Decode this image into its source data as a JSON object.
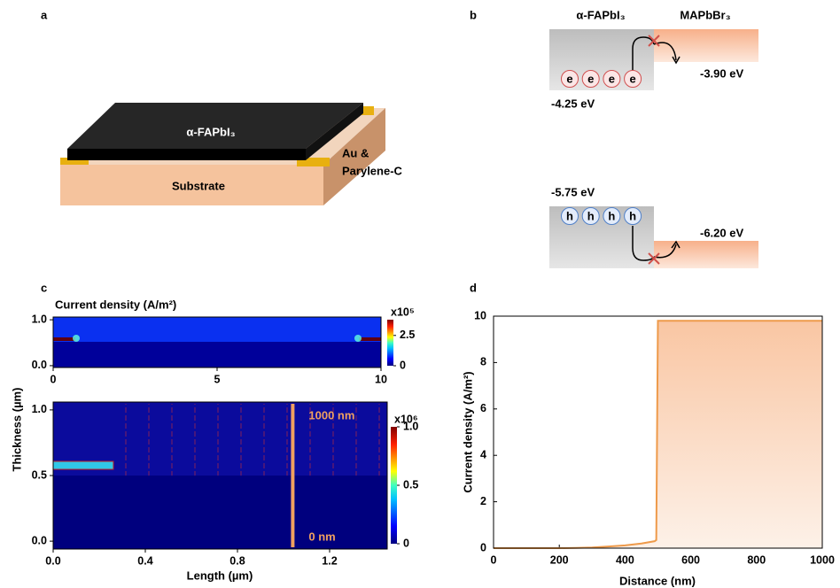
{
  "panel_a": {
    "label": "a",
    "film": "α-FAPbI₃",
    "electrode": [
      "Au &",
      "Parylene-C"
    ],
    "substrate": "Substrate"
  },
  "panel_b": {
    "label": "b",
    "left_material": "α-FAPbI₃",
    "right_material": "MAPbBr₃",
    "levels": [
      "-3.90 eV",
      "-4.25 eV",
      "-5.75 eV",
      "-6.20 eV"
    ],
    "electrons": [
      "e",
      "e",
      "e",
      "e"
    ],
    "holes": [
      "h",
      "h",
      "h",
      "h"
    ]
  },
  "panel_c": {
    "label": "c",
    "title": "Current density (A/m²)",
    "y_label": "Thickness (µm)",
    "x_label": "Length (µm)",
    "top": {
      "xlim": [
        0,
        10
      ],
      "xticks": [
        0,
        5,
        10
      ],
      "ylim": [
        -0.04,
        1.06
      ],
      "yticks": [
        {
          "value": 0,
          "label": "0.0"
        },
        {
          "value": 1,
          "label": "1.0"
        }
      ],
      "colorbar_scale": "x10⁵",
      "clim": [
        0,
        3.8
      ],
      "cticks": [
        0,
        2.5
      ]
    },
    "bottom": {
      "xlim": [
        0,
        1.45
      ],
      "xticks": [
        {
          "value": 0,
          "label": "0.0"
        },
        0.4,
        0.8,
        1.2
      ],
      "ylim": [
        -0.06,
        1.06
      ],
      "yticks": [
        {
          "value": 0,
          "label": "0.0"
        },
        0.5,
        {
          "value": 1,
          "label": "1.0"
        }
      ],
      "colorbar_scale": "x10⁶",
      "clim": [
        0,
        1
      ],
      "cticks": [
        0,
        0.5,
        {
          "value": 1,
          "label": "1.0"
        }
      ],
      "cutline_x": 1.04,
      "cutline_labels": [
        "1000 nm",
        "0 nm"
      ]
    }
  },
  "chart_data": {
    "type": "line",
    "label": "d",
    "x_label": "Distance (nm)",
    "y_label": "Current density (A/m²)",
    "x": [
      0,
      200,
      250,
      300,
      350,
      400,
      450,
      490,
      495,
      500,
      600,
      800,
      1000
    ],
    "series": [
      {
        "color": "#ee9a4a",
        "values": [
          0,
          0,
          0.01,
          0.03,
          0.07,
          0.12,
          0.2,
          0.3,
          0.35,
          9.8,
          9.8,
          9.8,
          9.8
        ]
      }
    ],
    "xlim": [
      0,
      1000
    ],
    "xticks": [
      0,
      200,
      400,
      600,
      800,
      1000
    ],
    "ylim": [
      0,
      10
    ],
    "yticks": [
      0,
      2,
      4,
      6,
      8,
      10
    ]
  }
}
